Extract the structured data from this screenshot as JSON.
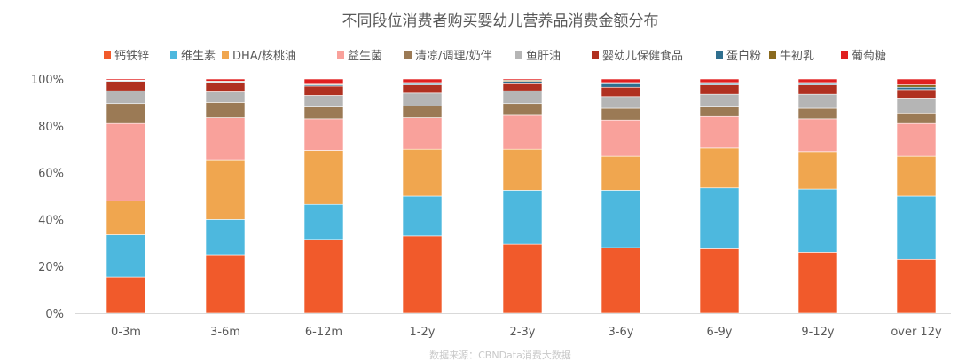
{
  "chart_data": {
    "type": "bar",
    "stacked": true,
    "title": "不同段位消费者购买婴幼儿营养品消费金额分布",
    "source": "数据来源：CBNData消费大数据",
    "categories": [
      "0-3m",
      "3-6m",
      "6-12m",
      "1-2y",
      "2-3y",
      "3-6y",
      "6-9y",
      "9-12y",
      "over 12y"
    ],
    "ylim": [
      0,
      100
    ],
    "yticks": [
      "0%",
      "20%",
      "40%",
      "60%",
      "80%",
      "100%"
    ],
    "legend_position": "top",
    "grid": false,
    "series": [
      {
        "name": "钙铁锌",
        "color": "#f15a2b",
        "values": [
          15.5,
          25,
          31.5,
          33,
          29.5,
          28,
          27.5,
          26,
          23
        ]
      },
      {
        "name": "维生素",
        "color": "#4db8de",
        "values": [
          18,
          15,
          15,
          17,
          23,
          24.5,
          26,
          27,
          27
        ]
      },
      {
        "name": "DHA/核桃油",
        "color": "#f0a64f",
        "values": [
          14.5,
          25.5,
          23,
          20,
          17.5,
          14.5,
          17,
          16,
          17
        ]
      },
      {
        "name": "益生菌",
        "color": "#f9a19b",
        "values": [
          33,
          18,
          13.5,
          13.5,
          14.5,
          15.5,
          13.5,
          14,
          14
        ]
      },
      {
        "name": "清凉/调理/奶伴",
        "color": "#9b7a55",
        "values": [
          8.5,
          6.5,
          5,
          5,
          5,
          5,
          4,
          4.5,
          4.5
        ]
      },
      {
        "name": "鱼肝油",
        "color": "#b5b5b5",
        "values": [
          5.5,
          4.5,
          5,
          5.5,
          5.5,
          5,
          5.5,
          6,
          6
        ]
      },
      {
        "name": "婴幼儿保健食品",
        "color": "#b03020",
        "values": [
          4,
          4,
          4,
          3.5,
          3,
          4,
          4,
          4,
          4
        ]
      },
      {
        "name": "蛋白粉",
        "color": "#2f6f8f",
        "values": [
          0.3,
          0.3,
          0.5,
          0.5,
          1,
          1.5,
          0.5,
          0.5,
          1
        ]
      },
      {
        "name": "牛初乳",
        "color": "#8a6a1e",
        "values": [
          0.2,
          0.3,
          0.3,
          0.5,
          0.5,
          0.5,
          0.5,
          0.5,
          1
        ]
      },
      {
        "name": "葡萄糖",
        "color": "#e02020",
        "values": [
          0.5,
          0.9,
          2.2,
          1.5,
          0.5,
          1.5,
          1.5,
          1.5,
          2.5
        ]
      }
    ]
  }
}
